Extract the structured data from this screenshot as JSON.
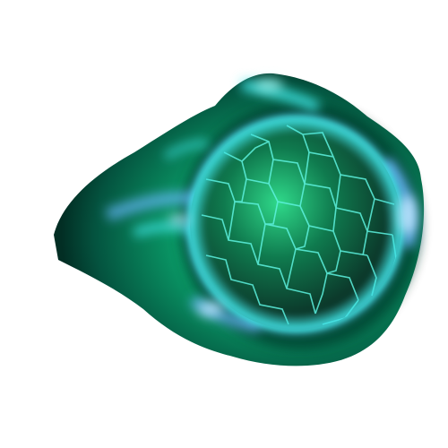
{
  "image": {
    "subject": "green-energy-orb",
    "background": "#ffffff",
    "colors": {
      "aura_dark": "#04533f",
      "aura_mid": "#0aa06a",
      "aura_bright": "#19e08e",
      "glow_cyan": "#3fe6e6",
      "glow_blue": "#6ab8ff",
      "orb_core": "#0c3b2c",
      "orb_mid": "#0f7a4e",
      "crack_lines": "#5ef2e0"
    }
  }
}
